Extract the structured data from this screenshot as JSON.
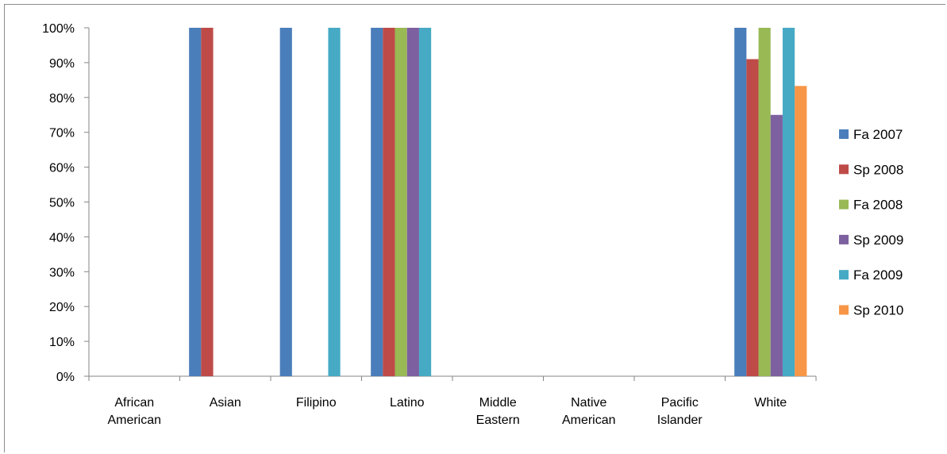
{
  "chart_data": {
    "type": "bar",
    "title": "",
    "xlabel": "",
    "ylabel": "",
    "ylim": [
      0,
      100
    ],
    "y_tick_step": 10,
    "y_tick_format": "percent",
    "grid": "none",
    "legend_position": "right",
    "categories": [
      [
        "African",
        "American"
      ],
      [
        "Asian"
      ],
      [
        "Filipino"
      ],
      [
        "Latino"
      ],
      [
        "Middle",
        "Eastern"
      ],
      [
        "Native",
        "American"
      ],
      [
        "Pacific",
        "Islander"
      ],
      [
        "White"
      ]
    ],
    "series": [
      {
        "name": "Fa 2007",
        "color": "#4a7ebb",
        "values": [
          0,
          100,
          100,
          100,
          0,
          0,
          0,
          100
        ]
      },
      {
        "name": "Sp 2008",
        "color": "#be4b48",
        "values": [
          0,
          100,
          0,
          100,
          0,
          0,
          0,
          91
        ]
      },
      {
        "name": "Fa 2008",
        "color": "#98b954",
        "values": [
          0,
          0,
          0,
          100,
          0,
          0,
          0,
          100
        ]
      },
      {
        "name": "Sp 2009",
        "color": "#7d60a0",
        "values": [
          0,
          0,
          0,
          100,
          0,
          0,
          0,
          75
        ]
      },
      {
        "name": "Fa 2009",
        "color": "#46aac5",
        "values": [
          0,
          0,
          100,
          100,
          0,
          0,
          0,
          100
        ]
      },
      {
        "name": "Sp 2010",
        "color": "#f79646",
        "values": [
          0,
          0,
          0,
          0,
          0,
          0,
          0,
          83.3
        ]
      }
    ]
  }
}
